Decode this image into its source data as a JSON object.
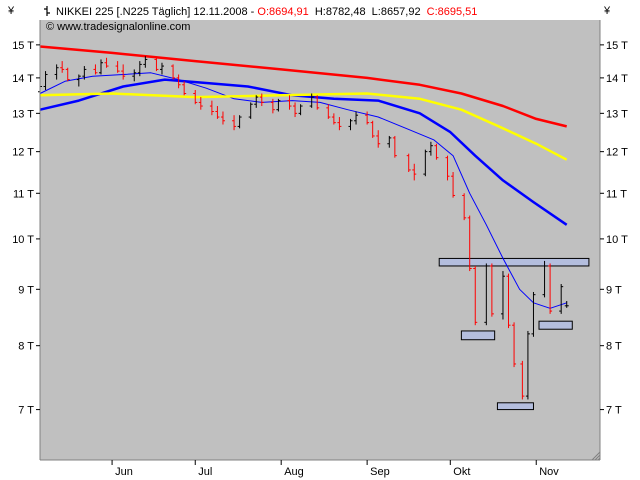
{
  "header": {
    "symbol_label": "NIKKEI 225 [.N225  Täglich] 12.11.2008 - ",
    "open_label": "O:8694,91",
    "high_label": "H:8782,48",
    "low_label": "L:8657,92",
    "close_label": "C:8695,51",
    "watermark": "© www.tradesignalonline.com",
    "currency_left": "¥",
    "currency_right": "¥"
  },
  "colors": {
    "plot_bg": "#c0c0c0",
    "up_bar": "#000000",
    "down_bar": "#ff0000",
    "ma_fast": "#0000ff",
    "ma_mid": "#0000ff",
    "ma_yellow": "#ffff00",
    "ma_red": "#ff0000",
    "box_fill": "#b4bede",
    "open_color": "#ff0000",
    "close_color": "#ff0000"
  },
  "chart_data": {
    "type": "line",
    "title": "NIKKEI 225 [.N225  Täglich] 12.11.2008",
    "ylabel": "¥",
    "xlabel": "",
    "y_scale": "log",
    "y_ticks": [
      {
        "value": 7000,
        "label": "7 T"
      },
      {
        "value": 8000,
        "label": "8 T"
      },
      {
        "value": 9000,
        "label": "9 T"
      },
      {
        "value": 10000,
        "label": "10 T"
      },
      {
        "value": 11000,
        "label": "11 T"
      },
      {
        "value": 12000,
        "label": "12 T"
      },
      {
        "value": 13000,
        "label": "13 T"
      },
      {
        "value": 14000,
        "label": "14 T"
      },
      {
        "value": 15000,
        "label": "15 T"
      }
    ],
    "ylim": [
      6300,
      15800
    ],
    "xlim": [
      "2008-05-06",
      "2008-11-24"
    ],
    "x_ticks": [
      {
        "date": "2008-06-01",
        "label": "Jun"
      },
      {
        "date": "2008-07-01",
        "label": "Jul"
      },
      {
        "date": "2008-08-01",
        "label": "Aug"
      },
      {
        "date": "2008-09-01",
        "label": "Sep"
      },
      {
        "date": "2008-10-01",
        "label": "Okt"
      },
      {
        "date": "2008-11-01",
        "label": "Nov"
      }
    ],
    "grid": false,
    "series": [
      {
        "key": "ma_fast",
        "points": [
          [
            "2008-05-06",
            13550
          ],
          [
            "2008-05-15",
            13900
          ],
          [
            "2008-05-25",
            14050
          ],
          [
            "2008-06-05",
            14100
          ],
          [
            "2008-06-15",
            14150
          ],
          [
            "2008-06-25",
            13950
          ],
          [
            "2008-07-05",
            13700
          ],
          [
            "2008-07-15",
            13400
          ],
          [
            "2008-07-25",
            13300
          ],
          [
            "2008-08-05",
            13350
          ],
          [
            "2008-08-15",
            13300
          ],
          [
            "2008-08-25",
            13100
          ],
          [
            "2008-09-05",
            12900
          ],
          [
            "2008-09-15",
            12600
          ],
          [
            "2008-09-25",
            12300
          ],
          [
            "2008-10-02",
            11900
          ],
          [
            "2008-10-08",
            11000
          ],
          [
            "2008-10-14",
            10300
          ],
          [
            "2008-10-20",
            9600
          ],
          [
            "2008-10-26",
            9000
          ],
          [
            "2008-10-31",
            8750
          ],
          [
            "2008-11-06",
            8650
          ],
          [
            "2008-11-12",
            8750
          ]
        ]
      },
      {
        "key": "ma_mid",
        "points": [
          [
            "2008-05-06",
            13100
          ],
          [
            "2008-05-20",
            13350
          ],
          [
            "2008-06-05",
            13750
          ],
          [
            "2008-06-20",
            13950
          ],
          [
            "2008-07-05",
            13850
          ],
          [
            "2008-07-20",
            13750
          ],
          [
            "2008-08-05",
            13500
          ],
          [
            "2008-08-20",
            13400
          ],
          [
            "2008-09-05",
            13350
          ],
          [
            "2008-09-20",
            13000
          ],
          [
            "2008-10-01",
            12500
          ],
          [
            "2008-10-10",
            11900
          ],
          [
            "2008-10-20",
            11300
          ],
          [
            "2008-10-31",
            10800
          ],
          [
            "2008-11-12",
            10300
          ]
        ]
      },
      {
        "key": "ma_yellow",
        "points": [
          [
            "2008-05-06",
            13500
          ],
          [
            "2008-06-01",
            13550
          ],
          [
            "2008-07-01",
            13450
          ],
          [
            "2008-08-01",
            13500
          ],
          [
            "2008-09-01",
            13550
          ],
          [
            "2008-09-20",
            13400
          ],
          [
            "2008-10-05",
            13100
          ],
          [
            "2008-10-20",
            12600
          ],
          [
            "2008-11-01",
            12200
          ],
          [
            "2008-11-12",
            11800
          ]
        ]
      },
      {
        "key": "ma_red",
        "points": [
          [
            "2008-05-06",
            14950
          ],
          [
            "2008-06-01",
            14750
          ],
          [
            "2008-07-01",
            14500
          ],
          [
            "2008-08-01",
            14250
          ],
          [
            "2008-09-01",
            14000
          ],
          [
            "2008-09-20",
            13800
          ],
          [
            "2008-10-05",
            13550
          ],
          [
            "2008-10-20",
            13200
          ],
          [
            "2008-11-01",
            12850
          ],
          [
            "2008-11-12",
            12650
          ]
        ]
      }
    ],
    "ohlc": [
      [
        "2008-05-06",
        13600,
        13900,
        13450,
        13750
      ],
      [
        "2008-05-08",
        13750,
        14200,
        13650,
        14100
      ],
      [
        "2008-05-12",
        14100,
        14400,
        13950,
        14300
      ],
      [
        "2008-05-14",
        14300,
        14500,
        14150,
        14250
      ],
      [
        "2008-05-16",
        14250,
        14300,
        13900,
        13950
      ],
      [
        "2008-05-20",
        13950,
        14100,
        13750,
        14050
      ],
      [
        "2008-05-22",
        14050,
        14350,
        13950,
        14250
      ],
      [
        "2008-05-26",
        14250,
        14400,
        14100,
        14150
      ],
      [
        "2008-05-28",
        14150,
        14550,
        14100,
        14450
      ],
      [
        "2008-05-30",
        14450,
        14600,
        14300,
        14350
      ],
      [
        "2008-06-03",
        14350,
        14500,
        14150,
        14200
      ],
      [
        "2008-06-05",
        14200,
        14400,
        13950,
        14050
      ],
      [
        "2008-06-09",
        14050,
        14250,
        13900,
        14150
      ],
      [
        "2008-06-11",
        14150,
        14500,
        14050,
        14400
      ],
      [
        "2008-06-13",
        14400,
        14650,
        14300,
        14550
      ],
      [
        "2008-06-17",
        14550,
        14600,
        14200,
        14250
      ],
      [
        "2008-06-19",
        14250,
        14450,
        14100,
        14350
      ],
      [
        "2008-06-23",
        14350,
        14400,
        13950,
        14000
      ],
      [
        "2008-06-25",
        14000,
        14100,
        13700,
        13800
      ],
      [
        "2008-06-27",
        13800,
        13900,
        13500,
        13550
      ],
      [
        "2008-07-01",
        13550,
        13650,
        13250,
        13300
      ],
      [
        "2008-07-03",
        13300,
        13450,
        13100,
        13200
      ],
      [
        "2008-07-07",
        13200,
        13350,
        12950,
        13050
      ],
      [
        "2008-07-09",
        13050,
        13200,
        12850,
        12900
      ],
      [
        "2008-07-11",
        12900,
        13050,
        12700,
        12800
      ],
      [
        "2008-07-15",
        12800,
        12950,
        12550,
        12650
      ],
      [
        "2008-07-17",
        12650,
        12950,
        12600,
        12900
      ],
      [
        "2008-07-21",
        12900,
        13300,
        12850,
        13250
      ],
      [
        "2008-07-23",
        13250,
        13500,
        13150,
        13450
      ],
      [
        "2008-07-25",
        13450,
        13550,
        13200,
        13300
      ],
      [
        "2008-07-29",
        13300,
        13400,
        13000,
        13100
      ],
      [
        "2008-07-31",
        13100,
        13400,
        13050,
        13350
      ],
      [
        "2008-08-04",
        13350,
        13500,
        13100,
        13200
      ],
      [
        "2008-08-06",
        13200,
        13300,
        12900,
        13000
      ],
      [
        "2008-08-08",
        13000,
        13250,
        12950,
        13200
      ],
      [
        "2008-08-12",
        13200,
        13550,
        13150,
        13450
      ],
      [
        "2008-08-14",
        13450,
        13500,
        13100,
        13150
      ],
      [
        "2008-08-18",
        13150,
        13250,
        12850,
        12900
      ],
      [
        "2008-08-20",
        12900,
        13000,
        12700,
        12750
      ],
      [
        "2008-08-22",
        12750,
        12900,
        12550,
        12650
      ],
      [
        "2008-08-26",
        12650,
        12850,
        12550,
        12800
      ],
      [
        "2008-08-28",
        12800,
        13050,
        12700,
        12950
      ],
      [
        "2008-09-01",
        12950,
        13050,
        12700,
        12750
      ],
      [
        "2008-09-03",
        12750,
        12800,
        12350,
        12400
      ],
      [
        "2008-09-05",
        12400,
        12550,
        12100,
        12200
      ],
      [
        "2008-09-09",
        12200,
        12400,
        12100,
        12350
      ],
      [
        "2008-09-11",
        12350,
        12400,
        11850,
        11900
      ],
      [
        "2008-09-16",
        11900,
        11950,
        11500,
        11550
      ],
      [
        "2008-09-18",
        11550,
        11700,
        11300,
        11450
      ],
      [
        "2008-09-22",
        11450,
        12050,
        11400,
        12000
      ],
      [
        "2008-09-24",
        12000,
        12250,
        11900,
        12150
      ],
      [
        "2008-09-26",
        12150,
        12200,
        11800,
        11850
      ],
      [
        "2008-09-30",
        11850,
        11900,
        11300,
        11400
      ],
      [
        "2008-10-02",
        11400,
        11500,
        10900,
        10950
      ],
      [
        "2008-10-06",
        10950,
        11000,
        10400,
        10450
      ],
      [
        "2008-10-08",
        10450,
        10500,
        9350,
        9400
      ],
      [
        "2008-10-10",
        9400,
        9450,
        8350,
        8400
      ],
      [
        "2008-10-14",
        8400,
        9500,
        8350,
        9450
      ],
      [
        "2008-10-16",
        9450,
        9500,
        8500,
        8550
      ],
      [
        "2008-10-20",
        8550,
        9350,
        8450,
        9250
      ],
      [
        "2008-10-22",
        9250,
        9300,
        8300,
        8350
      ],
      [
        "2008-10-24",
        8350,
        8400,
        7650,
        7700
      ],
      [
        "2008-10-27",
        7700,
        7750,
        7150,
        7200
      ],
      [
        "2008-10-29",
        7200,
        8250,
        7150,
        8200
      ],
      [
        "2008-10-31",
        8200,
        8950,
        8150,
        8900
      ],
      [
        "2008-11-04",
        8900,
        9550,
        8850,
        9450
      ],
      [
        "2008-11-06",
        9450,
        9500,
        8550,
        8600
      ],
      [
        "2008-11-10",
        8600,
        9100,
        8550,
        9050
      ],
      [
        "2008-11-12",
        8694.91,
        8782.48,
        8657.92,
        8695.51
      ]
    ],
    "boxes": [
      {
        "from": "2008-09-27",
        "to": "2008-11-20",
        "low": 9450,
        "high": 9600
      },
      {
        "from": "2008-10-05",
        "to": "2008-10-17",
        "low": 8100,
        "high": 8250
      },
      {
        "from": "2008-11-02",
        "to": "2008-11-14",
        "low": 8280,
        "high": 8420
      },
      {
        "from": "2008-10-18",
        "to": "2008-10-31",
        "low": 7000,
        "high": 7100
      }
    ]
  }
}
